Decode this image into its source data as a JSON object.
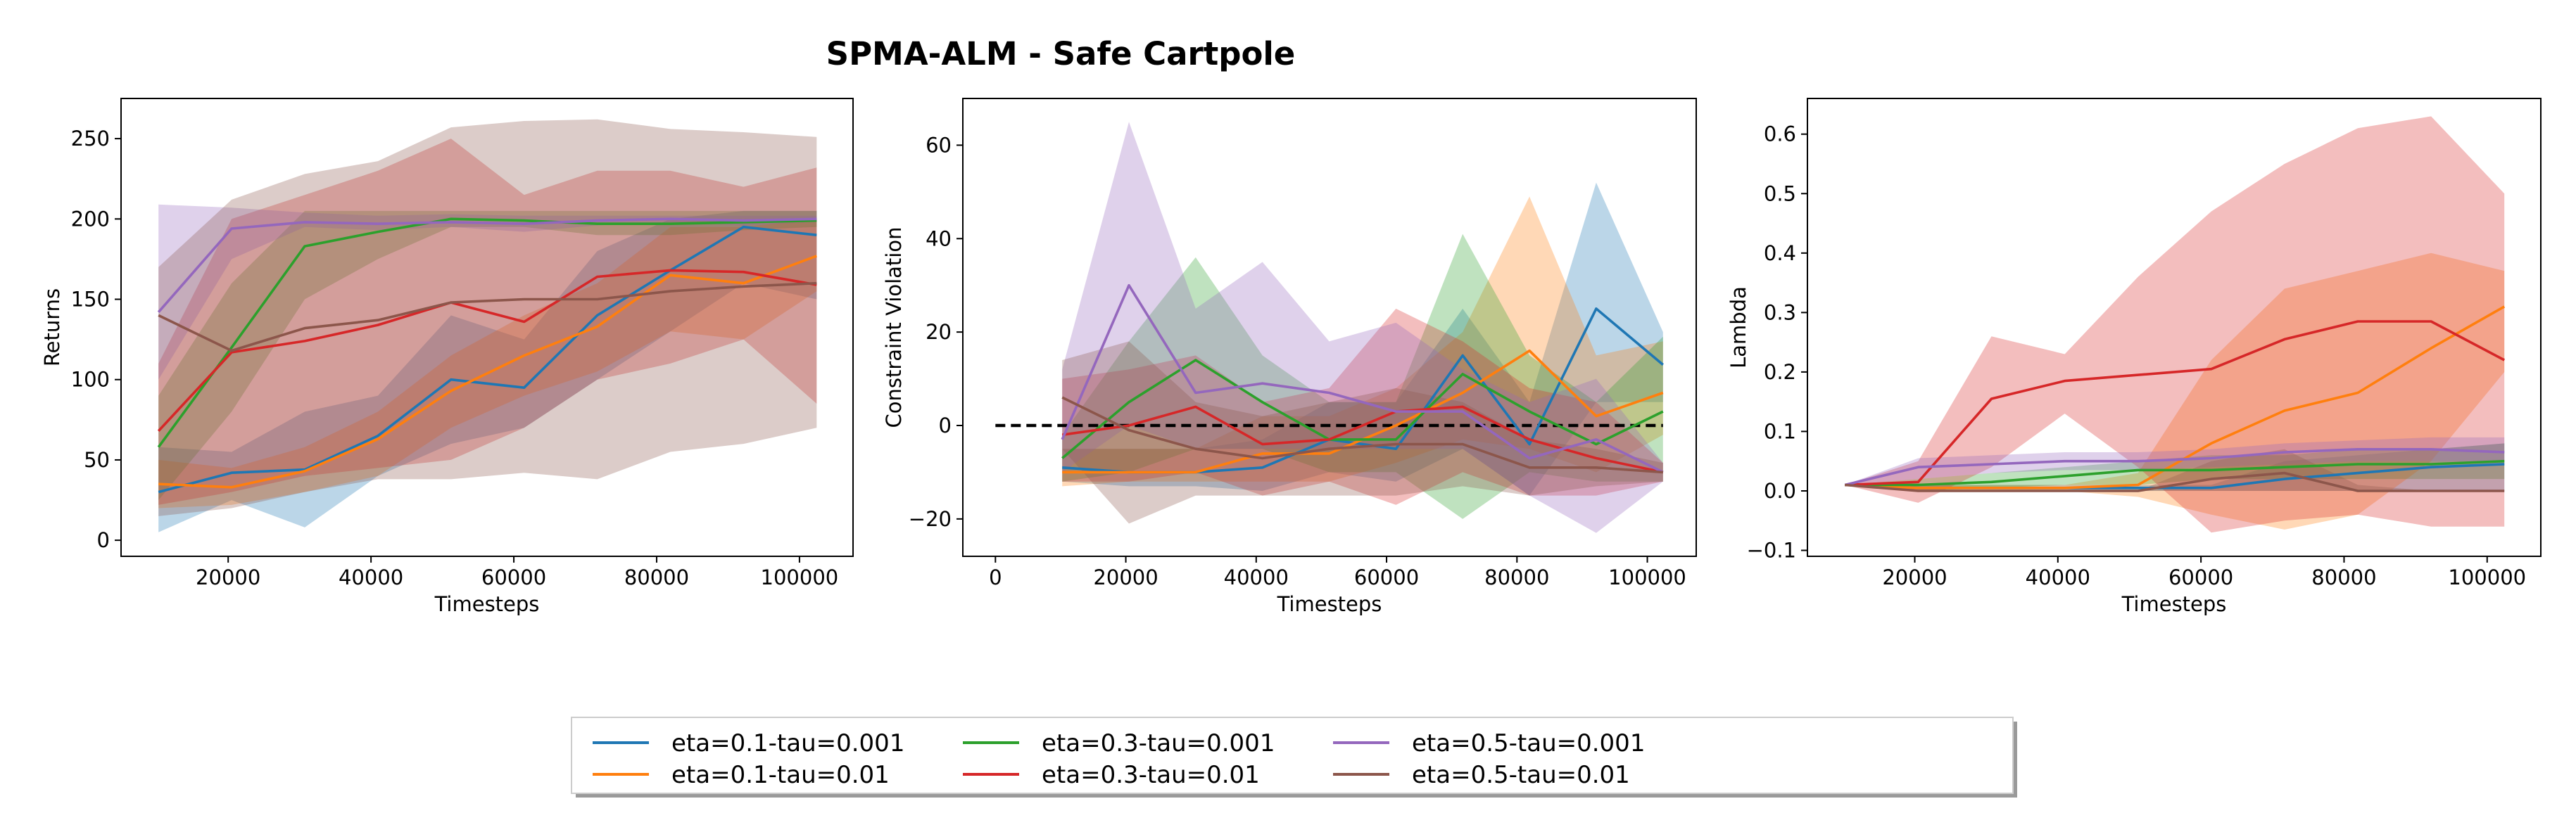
{
  "figure": {
    "title": "SPMA-ALM - Safe Cartpole"
  },
  "legend": {
    "ncol": 4,
    "entries": [
      {
        "label": "eta=0.1-tau=0.001",
        "color": "#1f77b4"
      },
      {
        "label": "eta=0.1-tau=0.01",
        "color": "#ff7f0e"
      },
      {
        "label": "eta=0.3-tau=0.001",
        "color": "#2ca02c"
      },
      {
        "label": "eta=0.3-tau=0.01",
        "color": "#d62728"
      },
      {
        "label": "eta=0.5-tau=0.001",
        "color": "#9467bd"
      },
      {
        "label": "eta=0.5-tau=0.01",
        "color": "#8c564b"
      }
    ]
  },
  "chart_data": [
    {
      "type": "line",
      "xlabel": "Timesteps",
      "ylabel": "Returns",
      "xlim": [
        5000,
        107500
      ],
      "ylim": [
        -10,
        275
      ],
      "xticks": [
        20000,
        40000,
        60000,
        80000,
        100000
      ],
      "xtick_labels": [
        "20000",
        "40000",
        "60000",
        "80000",
        "100000"
      ],
      "yticks": [
        0,
        50,
        100,
        150,
        200,
        250
      ],
      "ytick_labels": [
        "0",
        "50",
        "100",
        "150",
        "200",
        "250"
      ],
      "grid": false,
      "x": [
        10240,
        20480,
        30720,
        40960,
        51200,
        61440,
        71680,
        81920,
        92160,
        102400
      ],
      "series": [
        {
          "name": "eta=0.1-tau=0.001",
          "color": "#1f77b4",
          "mean": [
            30,
            42,
            44,
            65,
            100,
            95,
            140,
            168,
            195,
            190
          ],
          "lower": [
            5,
            25,
            8,
            40,
            60,
            70,
            100,
            130,
            160,
            150
          ],
          "upper": [
            58,
            55,
            80,
            90,
            140,
            125,
            180,
            200,
            205,
            205
          ]
        },
        {
          "name": "eta=0.1-tau=0.01",
          "color": "#ff7f0e",
          "mean": [
            35,
            33,
            43,
            63,
            93,
            115,
            133,
            165,
            160,
            177
          ],
          "lower": [
            20,
            22,
            30,
            40,
            70,
            90,
            105,
            130,
            125,
            155
          ],
          "upper": [
            50,
            45,
            58,
            80,
            115,
            140,
            160,
            195,
            195,
            200
          ]
        },
        {
          "name": "eta=0.3-tau=0.001",
          "color": "#2ca02c",
          "mean": [
            58,
            120,
            183,
            192,
            200,
            199,
            197,
            197,
            198,
            199
          ],
          "lower": [
            25,
            80,
            150,
            175,
            195,
            195,
            190,
            190,
            193,
            195
          ],
          "upper": [
            90,
            160,
            205,
            205,
            205,
            205,
            205,
            205,
            205,
            205
          ]
        },
        {
          "name": "eta=0.3-tau=0.01",
          "color": "#d62728",
          "mean": [
            68,
            117,
            124,
            134,
            148,
            136,
            164,
            168,
            167,
            159
          ],
          "lower": [
            22,
            30,
            40,
            45,
            50,
            70,
            100,
            110,
            125,
            85
          ],
          "upper": [
            110,
            200,
            215,
            230,
            250,
            215,
            230,
            230,
            220,
            232
          ]
        },
        {
          "name": "eta=0.5-tau=0.001",
          "color": "#9467bd",
          "mean": [
            142,
            194,
            198,
            197,
            198,
            197,
            199,
            200,
            199,
            200
          ],
          "lower": [
            100,
            175,
            195,
            193,
            195,
            192,
            196,
            198,
            196,
            198
          ],
          "upper": [
            209,
            207,
            204,
            202,
            203,
            202,
            202,
            202,
            202,
            202
          ]
        },
        {
          "name": "eta=0.5-tau=0.01",
          "color": "#8c564b",
          "mean": [
            140,
            118,
            132,
            137,
            148,
            150,
            150,
            155,
            158,
            160
          ],
          "lower": [
            15,
            20,
            30,
            38,
            38,
            42,
            38,
            55,
            60,
            70
          ],
          "upper": [
            170,
            212,
            228,
            236,
            257,
            261,
            262,
            256,
            254,
            251
          ]
        }
      ]
    },
    {
      "type": "line",
      "xlabel": "Timesteps",
      "ylabel": "Constraint Violation",
      "xlim": [
        -5000,
        107500
      ],
      "ylim": [
        -28,
        70
      ],
      "xticks": [
        0,
        20000,
        40000,
        60000,
        80000,
        100000
      ],
      "xtick_labels": [
        "0",
        "20000",
        "40000",
        "60000",
        "80000",
        "100000"
      ],
      "yticks": [
        -20,
        0,
        20,
        40,
        60
      ],
      "ytick_labels": [
        "−20",
        "0",
        "20",
        "40",
        "60"
      ],
      "grid": false,
      "reference_line": {
        "y": 0,
        "x_from": 0,
        "x_to": 102400,
        "style": "dashed",
        "color": "#000000"
      },
      "x": [
        10240,
        20480,
        30720,
        40960,
        51200,
        61440,
        71680,
        81920,
        92160,
        102400
      ],
      "series": [
        {
          "name": "eta=0.1-tau=0.001",
          "color": "#1f77b4",
          "mean": [
            -9,
            -10,
            -10,
            -9,
            -3,
            -5,
            15,
            -4,
            25,
            13
          ],
          "lower": [
            -12,
            -13,
            -13,
            -14,
            -10,
            -12,
            -5,
            -15,
            5,
            5
          ],
          "upper": [
            -5,
            -5,
            -5,
            -3,
            5,
            5,
            25,
            5,
            52,
            20
          ]
        },
        {
          "name": "eta=0.1-tau=0.01",
          "color": "#ff7f0e",
          "mean": [
            -10,
            -10,
            -10,
            -6,
            -6,
            0,
            7,
            16,
            2,
            7
          ],
          "lower": [
            -13,
            -12,
            -12,
            -12,
            -12,
            -8,
            -3,
            -5,
            -10,
            -2
          ],
          "upper": [
            -5,
            -5,
            -5,
            2,
            2,
            8,
            20,
            49,
            15,
            18
          ]
        },
        {
          "name": "eta=0.3-tau=0.001",
          "color": "#2ca02c",
          "mean": [
            -7,
            5,
            14,
            5,
            -3,
            -3,
            11,
            3,
            -4,
            3
          ],
          "lower": [
            -12,
            -10,
            -5,
            -5,
            -10,
            -10,
            -20,
            -10,
            -12,
            -12
          ],
          "upper": [
            -2,
            18,
            36,
            15,
            5,
            5,
            41,
            15,
            5,
            19
          ]
        },
        {
          "name": "eta=0.3-tau=0.01",
          "color": "#d62728",
          "mean": [
            -2,
            0,
            4,
            -4,
            -3,
            3,
            4,
            -3,
            -7,
            -10
          ],
          "lower": [
            -12,
            -12,
            -10,
            -15,
            -12,
            -17,
            -10,
            -15,
            -15,
            -12
          ],
          "upper": [
            10,
            12,
            15,
            5,
            8,
            25,
            18,
            8,
            5,
            -8
          ]
        },
        {
          "name": "eta=0.5-tau=0.001",
          "color": "#9467bd",
          "mean": [
            -3,
            30,
            7,
            9,
            7,
            3,
            3,
            -7,
            -3,
            -10
          ],
          "lower": [
            -10,
            0,
            -5,
            -5,
            -5,
            -5,
            -5,
            -15,
            -23,
            -12
          ],
          "upper": [
            12,
            65,
            25,
            35,
            18,
            22,
            12,
            5,
            10,
            -8
          ]
        },
        {
          "name": "eta=0.5-tau=0.01",
          "color": "#8c564b",
          "mean": [
            6,
            -1,
            -5,
            -7,
            -5,
            -4,
            -4,
            -9,
            -9,
            -10
          ],
          "lower": [
            -5,
            -21,
            -15,
            -15,
            -15,
            -15,
            -13,
            -15,
            -13,
            -12
          ],
          "upper": [
            14,
            18,
            5,
            2,
            5,
            8,
            5,
            -3,
            -5,
            -8
          ]
        }
      ]
    },
    {
      "type": "line",
      "xlabel": "Timesteps",
      "ylabel": "Lambda",
      "xlim": [
        5000,
        107500
      ],
      "ylim": [
        -0.11,
        0.66
      ],
      "xticks": [
        20000,
        40000,
        60000,
        80000,
        100000
      ],
      "xtick_labels": [
        "20000",
        "40000",
        "60000",
        "80000",
        "100000"
      ],
      "yticks": [
        -0.1,
        0.0,
        0.1,
        0.2,
        0.3,
        0.4,
        0.5,
        0.6
      ],
      "ytick_labels": [
        "−0.1",
        "0.0",
        "0.1",
        "0.2",
        "0.3",
        "0.4",
        "0.5",
        "0.6"
      ],
      "grid": false,
      "x": [
        10240,
        20480,
        30720,
        40960,
        51200,
        61440,
        71680,
        81920,
        92160,
        102400
      ],
      "series": [
        {
          "name": "eta=0.1-tau=0.001",
          "color": "#1f77b4",
          "mean": [
            0.01,
            0.005,
            0.005,
            0.005,
            0.005,
            0.005,
            0.02,
            0.03,
            0.04,
            0.045
          ],
          "lower": [
            0.01,
            0.0,
            0.0,
            0.0,
            0.0,
            0.0,
            0.0,
            0.0,
            0.0,
            0.0
          ],
          "upper": [
            0.01,
            0.01,
            0.01,
            0.01,
            0.01,
            0.01,
            0.05,
            0.06,
            0.07,
            0.08
          ]
        },
        {
          "name": "eta=0.1-tau=0.01",
          "color": "#ff7f0e",
          "mean": [
            0.01,
            0.005,
            0.005,
            0.005,
            0.01,
            0.08,
            0.135,
            0.165,
            0.24,
            0.31
          ],
          "lower": [
            0.01,
            0.0,
            0.0,
            0.0,
            -0.01,
            -0.04,
            -0.065,
            -0.04,
            0.05,
            0.2
          ],
          "upper": [
            0.01,
            0.01,
            0.01,
            0.01,
            0.03,
            0.22,
            0.34,
            0.37,
            0.4,
            0.37
          ]
        },
        {
          "name": "eta=0.3-tau=0.001",
          "color": "#2ca02c",
          "mean": [
            0.01,
            0.01,
            0.015,
            0.025,
            0.035,
            0.035,
            0.04,
            0.045,
            0.045,
            0.05
          ],
          "lower": [
            0.01,
            0.0,
            0.005,
            0.01,
            0.01,
            0.02,
            0.02,
            0.02,
            0.02,
            0.02
          ],
          "upper": [
            0.01,
            0.02,
            0.03,
            0.04,
            0.05,
            0.06,
            0.06,
            0.07,
            0.07,
            0.08
          ]
        },
        {
          "name": "eta=0.3-tau=0.01",
          "color": "#d62728",
          "mean": [
            0.01,
            0.015,
            0.155,
            0.185,
            0.195,
            0.205,
            0.255,
            0.285,
            0.285,
            0.22
          ],
          "lower": [
            0.01,
            -0.02,
            0.04,
            0.13,
            0.04,
            -0.07,
            -0.05,
            -0.04,
            -0.06,
            -0.06
          ],
          "upper": [
            0.01,
            0.05,
            0.26,
            0.23,
            0.36,
            0.47,
            0.55,
            0.61,
            0.63,
            0.5
          ]
        },
        {
          "name": "eta=0.5-tau=0.001",
          "color": "#9467bd",
          "mean": [
            0.01,
            0.04,
            0.045,
            0.05,
            0.05,
            0.055,
            0.065,
            0.07,
            0.07,
            0.065
          ],
          "lower": [
            0.01,
            0.02,
            0.03,
            0.035,
            0.035,
            0.04,
            0.045,
            0.05,
            0.05,
            0.05
          ],
          "upper": [
            0.01,
            0.055,
            0.06,
            0.065,
            0.065,
            0.07,
            0.08,
            0.085,
            0.09,
            0.09
          ]
        },
        {
          "name": "eta=0.5-tau=0.01",
          "color": "#8c564b",
          "mean": [
            0.01,
            0.0,
            0.0,
            0.0,
            0.0,
            0.02,
            0.03,
            0.0,
            0.0,
            0.0
          ],
          "lower": [
            0.01,
            0.0,
            0.0,
            0.0,
            0.0,
            0.0,
            0.0,
            0.0,
            0.0,
            0.0
          ],
          "upper": [
            0.01,
            0.0,
            0.0,
            0.0,
            0.0,
            0.05,
            0.07,
            0.01,
            0.0,
            0.0
          ]
        }
      ]
    }
  ]
}
